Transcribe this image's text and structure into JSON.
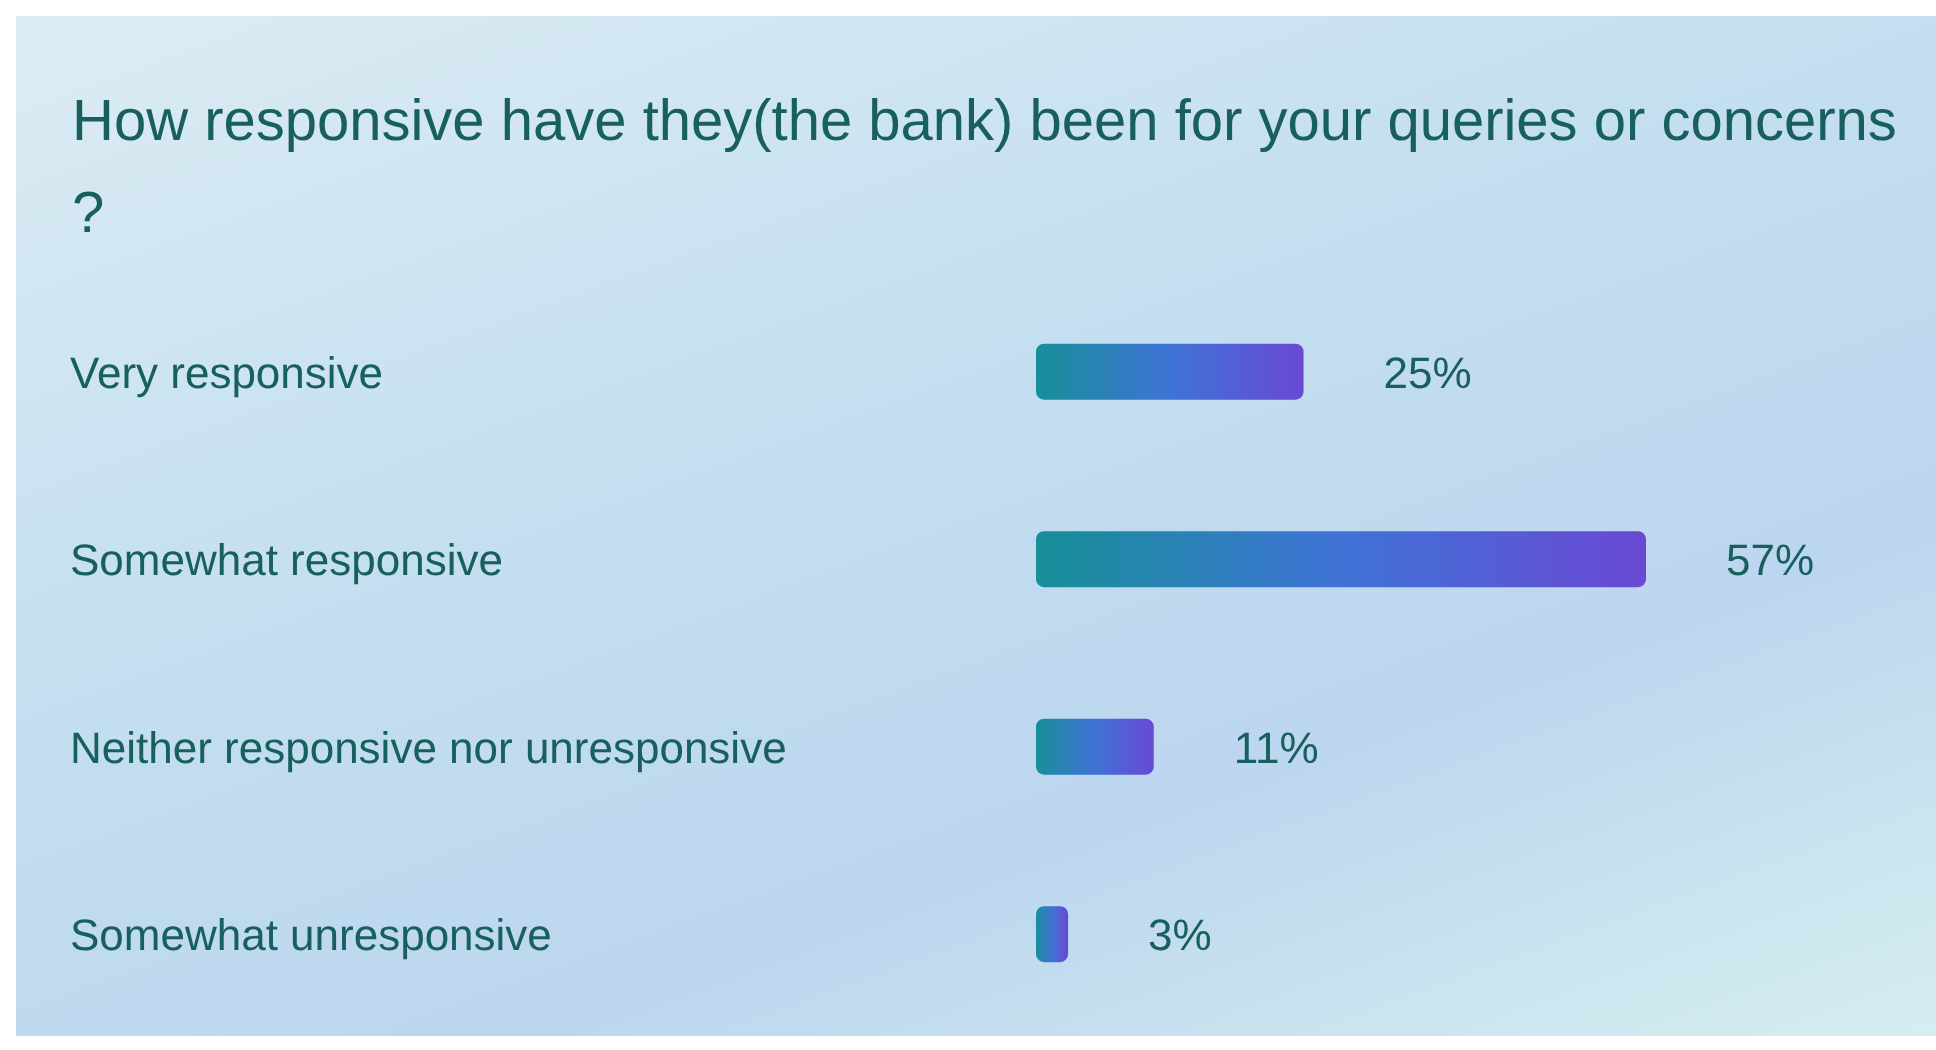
{
  "chart_data": {
    "type": "bar",
    "orientation": "horizontal",
    "title": "How responsive have they(the bank) been for your queries or concerns ?",
    "categories": [
      "Very responsive",
      "Somewhat responsive",
      "Neither responsive nor unresponsive",
      "Somewhat unresponsive"
    ],
    "values": [
      25,
      57,
      11,
      3
    ],
    "value_labels": [
      "25%",
      "57%",
      "11%",
      "3%"
    ],
    "color": "#3f73d6"
  }
}
